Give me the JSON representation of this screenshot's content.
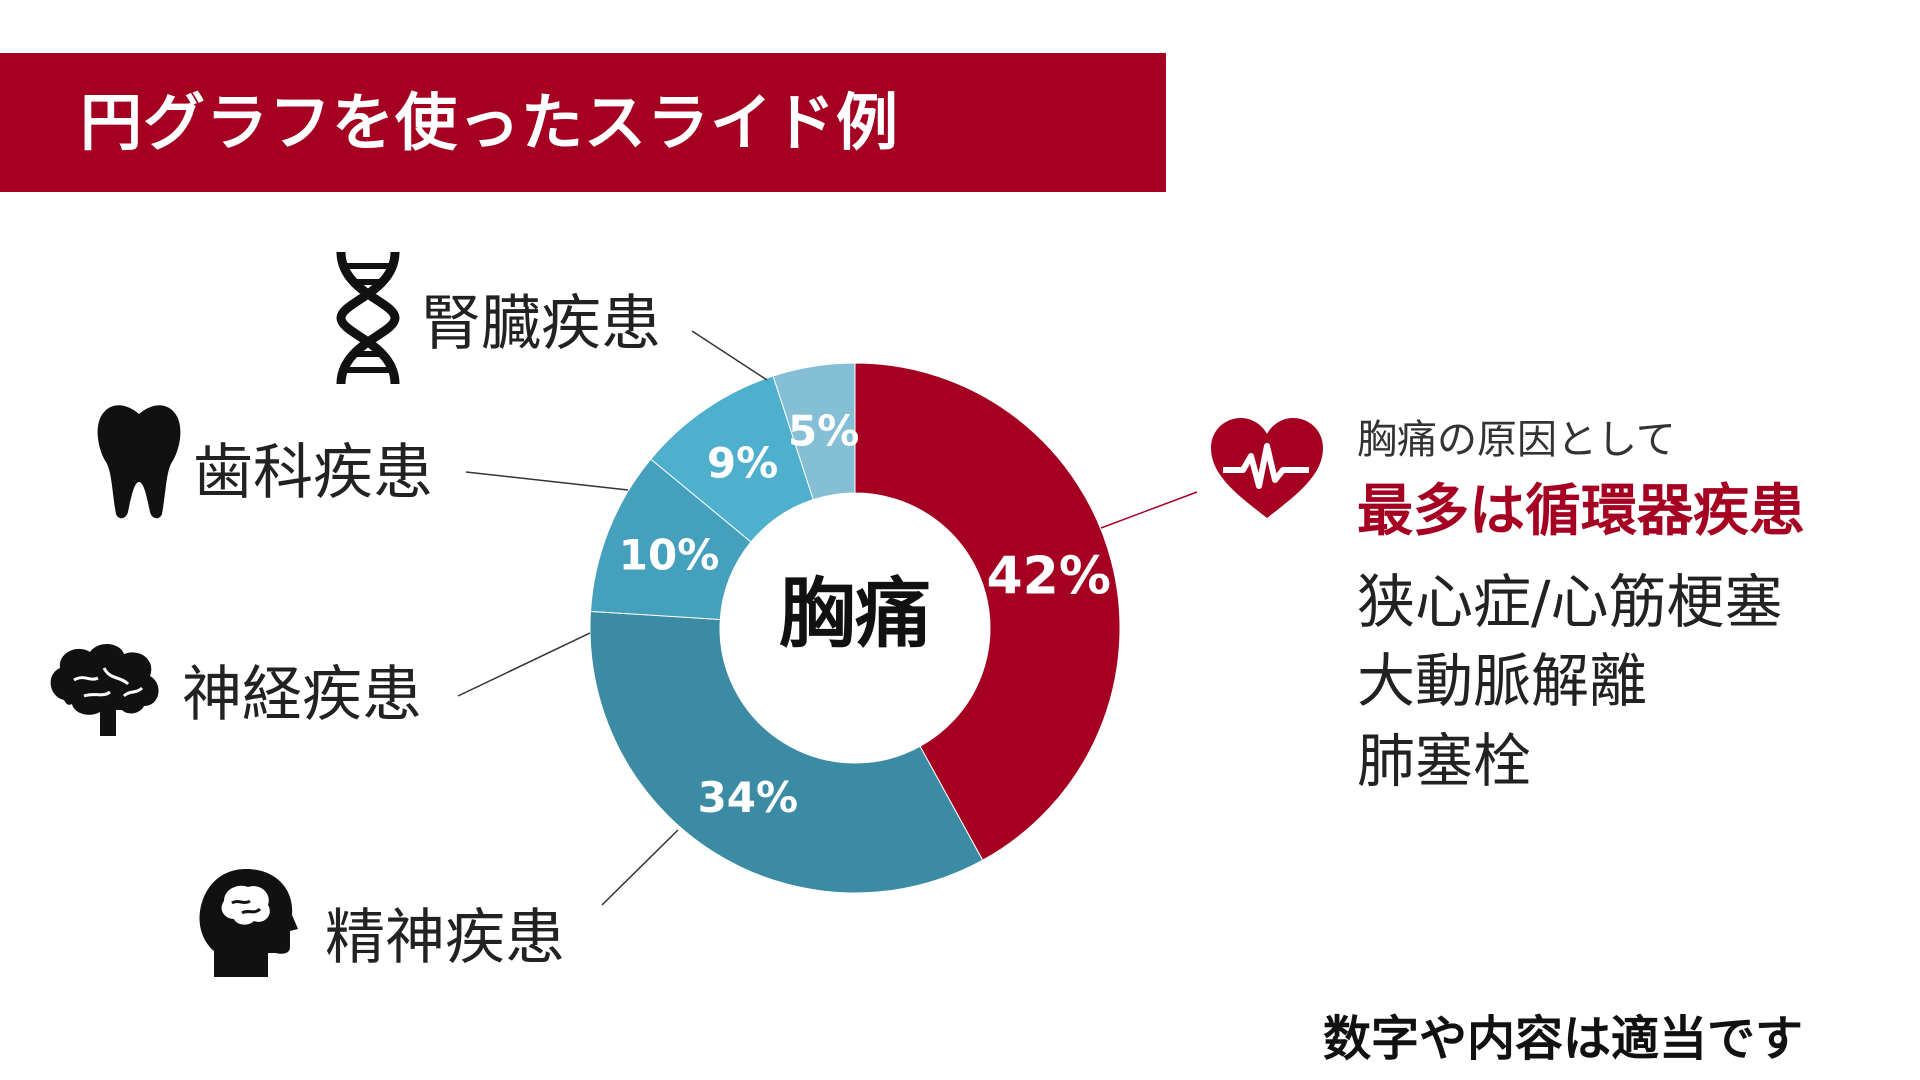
{
  "title": "円グラフを使ったスライド例",
  "chart_data": {
    "type": "pie",
    "center_label": "胸痛",
    "slices": [
      {
        "label": "循環器疾患",
        "value": 42,
        "display": "42%",
        "color": "#a50021"
      },
      {
        "label": "精神疾患",
        "value": 34,
        "display": "34%",
        "color": "#3b8ba5"
      },
      {
        "label": "神経疾患",
        "value": 10,
        "display": "10%",
        "color": "#45a0bd"
      },
      {
        "label": "歯科疾患",
        "value": 9,
        "display": "9%",
        "color": "#4fb0cd"
      },
      {
        "label": "腎臓疾患",
        "value": 5,
        "display": "5%",
        "color": "#84bfd6"
      }
    ]
  },
  "outer_labels": {
    "kidney": "腎臓疾患",
    "dental": "歯科疾患",
    "neuro": "神経疾患",
    "psych": "精神疾患"
  },
  "icons": {
    "kidney": "dna-icon",
    "dental": "tooth-icon",
    "neuro": "brain-icon",
    "psych": "head-brain-icon",
    "cardio": "heart-pulse-icon"
  },
  "annotation": {
    "lead": "胸痛の原因として",
    "headline": "最多は循環器疾患",
    "causes": [
      "狭心症/心筋梗塞",
      "大動脈解離",
      "肺塞栓"
    ]
  },
  "footer": "数字や内容は適当です",
  "colors": {
    "accent": "#a50021"
  }
}
